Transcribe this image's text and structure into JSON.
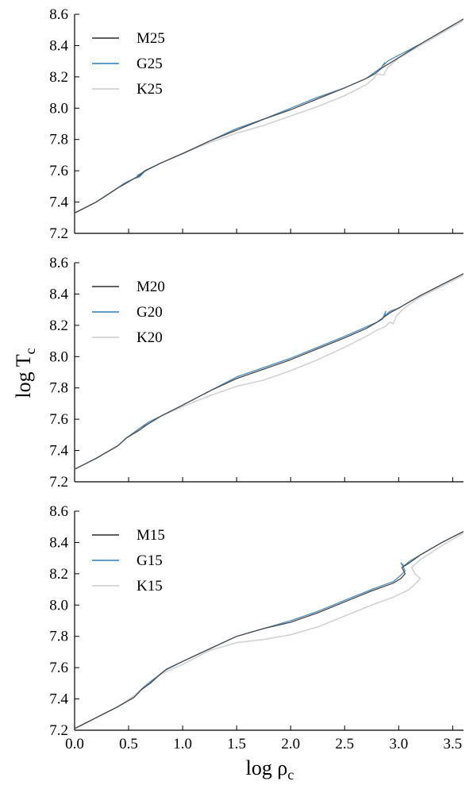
{
  "colors": {
    "M": "#4a4a4a",
    "G": "#4a8ec4",
    "K": "#d2d2d2"
  },
  "chart_data": {
    "type": "line",
    "xlabel": "log ρ",
    "xlabel_sub": "c",
    "ylabel": "log T",
    "ylabel_sub": "c",
    "xlim": [
      0.0,
      3.6
    ],
    "ylim": [
      7.2,
      8.6
    ],
    "x_ticks": [
      "0.0",
      "0.5",
      "1.0",
      "1.5",
      "2.0",
      "2.5",
      "3.0",
      "3.5"
    ],
    "y_ticks": [
      "7.2",
      "7.4",
      "7.6",
      "7.8",
      "8.0",
      "8.2",
      "8.4",
      "8.6"
    ],
    "grid": false,
    "legend": "top-left",
    "panels": [
      {
        "series": [
          {
            "name": "M25",
            "color_key": "M",
            "points": [
              [
                0.0,
                7.33
              ],
              [
                0.2,
                7.4
              ],
              [
                0.4,
                7.49
              ],
              [
                0.45,
                7.51
              ],
              [
                0.55,
                7.55
              ],
              [
                0.6,
                7.57
              ],
              [
                0.65,
                7.6
              ],
              [
                0.8,
                7.65
              ],
              [
                1.0,
                7.71
              ],
              [
                1.25,
                7.79
              ],
              [
                1.5,
                7.86
              ],
              [
                1.75,
                7.93
              ],
              [
                2.0,
                7.99
              ],
              [
                2.25,
                8.06
              ],
              [
                2.5,
                8.13
              ],
              [
                2.7,
                8.19
              ],
              [
                2.78,
                8.22
              ],
              [
                2.85,
                8.26
              ],
              [
                2.9,
                8.28
              ],
              [
                2.97,
                8.31
              ],
              [
                3.2,
                8.41
              ],
              [
                3.4,
                8.49
              ],
              [
                3.6,
                8.57
              ]
            ]
          },
          {
            "name": "G25",
            "color_key": "G",
            "points": [
              [
                0.0,
                7.33
              ],
              [
                0.2,
                7.4
              ],
              [
                0.4,
                7.49
              ],
              [
                0.46,
                7.52
              ],
              [
                0.55,
                7.55
              ],
              [
                0.6,
                7.56
              ],
              [
                0.64,
                7.59
              ],
              [
                0.58,
                7.57
              ],
              [
                0.66,
                7.6
              ],
              [
                0.8,
                7.65
              ],
              [
                1.0,
                7.71
              ],
              [
                1.25,
                7.79
              ],
              [
                1.5,
                7.87
              ],
              [
                1.75,
                7.93
              ],
              [
                2.0,
                8.0
              ],
              [
                2.25,
                8.07
              ],
              [
                2.5,
                8.13
              ],
              [
                2.7,
                8.19
              ],
              [
                2.78,
                8.23
              ],
              [
                2.84,
                8.26
              ],
              [
                2.87,
                8.29
              ],
              [
                2.85,
                8.27
              ],
              [
                2.9,
                8.3
              ],
              [
                2.95,
                8.32
              ],
              [
                3.2,
                8.41
              ],
              [
                3.4,
                8.49
              ],
              [
                3.6,
                8.57
              ]
            ]
          },
          {
            "name": "K25",
            "color_key": "K",
            "points": [
              [
                0.0,
                7.33
              ],
              [
                0.2,
                7.4
              ],
              [
                0.4,
                7.49
              ],
              [
                0.46,
                7.52
              ],
              [
                0.55,
                7.55
              ],
              [
                0.6,
                7.57
              ],
              [
                0.66,
                7.6
              ],
              [
                0.8,
                7.65
              ],
              [
                1.0,
                7.71
              ],
              [
                1.25,
                7.78
              ],
              [
                1.5,
                7.84
              ],
              [
                1.75,
                7.89
              ],
              [
                2.0,
                7.95
              ],
              [
                2.25,
                8.01
              ],
              [
                2.5,
                8.08
              ],
              [
                2.7,
                8.15
              ],
              [
                2.77,
                8.19
              ],
              [
                2.8,
                8.22
              ],
              [
                2.86,
                8.21
              ],
              [
                2.9,
                8.26
              ],
              [
                3.0,
                8.32
              ],
              [
                3.2,
                8.4
              ],
              [
                3.4,
                8.48
              ],
              [
                3.6,
                8.56
              ]
            ]
          }
        ]
      },
      {
        "series": [
          {
            "name": "M20",
            "color_key": "M",
            "points": [
              [
                0.0,
                7.28
              ],
              [
                0.2,
                7.35
              ],
              [
                0.4,
                7.43
              ],
              [
                0.48,
                7.48
              ],
              [
                0.55,
                7.51
              ],
              [
                0.6,
                7.53
              ],
              [
                0.66,
                7.56
              ],
              [
                0.8,
                7.62
              ],
              [
                1.0,
                7.69
              ],
              [
                1.25,
                7.78
              ],
              [
                1.5,
                7.86
              ],
              [
                1.75,
                7.92
              ],
              [
                2.0,
                7.98
              ],
              [
                2.25,
                8.05
              ],
              [
                2.5,
                8.12
              ],
              [
                2.7,
                8.18
              ],
              [
                2.8,
                8.22
              ],
              [
                2.86,
                8.25
              ],
              [
                2.92,
                8.28
              ],
              [
                3.0,
                8.31
              ],
              [
                3.2,
                8.39
              ],
              [
                3.4,
                8.46
              ],
              [
                3.6,
                8.53
              ]
            ]
          },
          {
            "name": "G20",
            "color_key": "G",
            "points": [
              [
                0.0,
                7.28
              ],
              [
                0.2,
                7.35
              ],
              [
                0.4,
                7.43
              ],
              [
                0.48,
                7.48
              ],
              [
                0.58,
                7.53
              ],
              [
                0.66,
                7.57
              ],
              [
                0.63,
                7.55
              ],
              [
                0.68,
                7.58
              ],
              [
                0.8,
                7.62
              ],
              [
                1.0,
                7.69
              ],
              [
                1.25,
                7.78
              ],
              [
                1.5,
                7.87
              ],
              [
                1.75,
                7.93
              ],
              [
                2.0,
                7.99
              ],
              [
                2.25,
                8.06
              ],
              [
                2.5,
                8.13
              ],
              [
                2.7,
                8.19
              ],
              [
                2.8,
                8.22
              ],
              [
                2.85,
                8.24
              ],
              [
                2.88,
                8.29
              ],
              [
                2.87,
                8.26
              ],
              [
                2.92,
                8.29
              ],
              [
                3.0,
                8.31
              ],
              [
                3.2,
                8.39
              ],
              [
                3.4,
                8.46
              ],
              [
                3.6,
                8.53
              ]
            ]
          },
          {
            "name": "K20",
            "color_key": "K",
            "points": [
              [
                0.0,
                7.28
              ],
              [
                0.2,
                7.35
              ],
              [
                0.4,
                7.43
              ],
              [
                0.48,
                7.48
              ],
              [
                0.58,
                7.53
              ],
              [
                0.66,
                7.57
              ],
              [
                0.8,
                7.62
              ],
              [
                1.0,
                7.68
              ],
              [
                1.25,
                7.75
              ],
              [
                1.5,
                7.81
              ],
              [
                1.75,
                7.85
              ],
              [
                2.0,
                7.91
              ],
              [
                2.25,
                7.98
              ],
              [
                2.5,
                8.06
              ],
              [
                2.7,
                8.13
              ],
              [
                2.8,
                8.17
              ],
              [
                2.87,
                8.19
              ],
              [
                2.92,
                8.22
              ],
              [
                2.95,
                8.21
              ],
              [
                2.98,
                8.26
              ],
              [
                3.05,
                8.31
              ],
              [
                3.2,
                8.38
              ],
              [
                3.4,
                8.45
              ],
              [
                3.6,
                8.52
              ]
            ]
          }
        ]
      },
      {
        "series": [
          {
            "name": "M15",
            "color_key": "M",
            "points": [
              [
                0.0,
                7.21
              ],
              [
                0.2,
                7.28
              ],
              [
                0.4,
                7.35
              ],
              [
                0.55,
                7.41
              ],
              [
                0.62,
                7.46
              ],
              [
                0.7,
                7.5
              ],
              [
                0.78,
                7.55
              ],
              [
                0.85,
                7.59
              ],
              [
                1.0,
                7.64
              ],
              [
                1.25,
                7.72
              ],
              [
                1.5,
                7.8
              ],
              [
                1.75,
                7.85
              ],
              [
                2.0,
                7.89
              ],
              [
                2.25,
                7.95
              ],
              [
                2.5,
                8.02
              ],
              [
                2.75,
                8.09
              ],
              [
                2.95,
                8.14
              ],
              [
                3.02,
                8.17
              ],
              [
                3.06,
                8.2
              ],
              [
                3.03,
                8.24
              ],
              [
                3.08,
                8.26
              ],
              [
                3.2,
                8.32
              ],
              [
                3.4,
                8.4
              ],
              [
                3.6,
                8.47
              ]
            ]
          },
          {
            "name": "G15",
            "color_key": "G",
            "points": [
              [
                0.0,
                7.21
              ],
              [
                0.2,
                7.28
              ],
              [
                0.4,
                7.35
              ],
              [
                0.55,
                7.41
              ],
              [
                0.63,
                7.47
              ],
              [
                0.72,
                7.52
              ],
              [
                0.8,
                7.56
              ],
              [
                0.76,
                7.54
              ],
              [
                0.83,
                7.58
              ],
              [
                1.0,
                7.64
              ],
              [
                1.25,
                7.72
              ],
              [
                1.5,
                7.8
              ],
              [
                1.75,
                7.85
              ],
              [
                2.0,
                7.9
              ],
              [
                2.25,
                7.96
              ],
              [
                2.5,
                8.03
              ],
              [
                2.75,
                8.1
              ],
              [
                2.95,
                8.15
              ],
              [
                3.02,
                8.19
              ],
              [
                3.06,
                8.22
              ],
              [
                3.02,
                8.27
              ],
              [
                3.05,
                8.25
              ],
              [
                3.1,
                8.28
              ],
              [
                3.2,
                8.32
              ],
              [
                3.4,
                8.4
              ],
              [
                3.6,
                8.47
              ]
            ]
          },
          {
            "name": "K15",
            "color_key": "K",
            "points": [
              [
                0.0,
                7.21
              ],
              [
                0.2,
                7.28
              ],
              [
                0.4,
                7.35
              ],
              [
                0.55,
                7.42
              ],
              [
                0.63,
                7.47
              ],
              [
                0.72,
                7.52
              ],
              [
                0.8,
                7.56
              ],
              [
                1.0,
                7.62
              ],
              [
                1.25,
                7.71
              ],
              [
                1.5,
                7.76
              ],
              [
                1.75,
                7.78
              ],
              [
                2.0,
                7.81
              ],
              [
                2.25,
                7.86
              ],
              [
                2.5,
                7.93
              ],
              [
                2.75,
                8.0
              ],
              [
                2.95,
                8.05
              ],
              [
                3.1,
                8.1
              ],
              [
                3.16,
                8.14
              ],
              [
                3.2,
                8.17
              ],
              [
                3.15,
                8.2
              ],
              [
                3.12,
                8.24
              ],
              [
                3.2,
                8.29
              ],
              [
                3.4,
                8.38
              ],
              [
                3.6,
                8.46
              ]
            ]
          }
        ]
      }
    ]
  }
}
